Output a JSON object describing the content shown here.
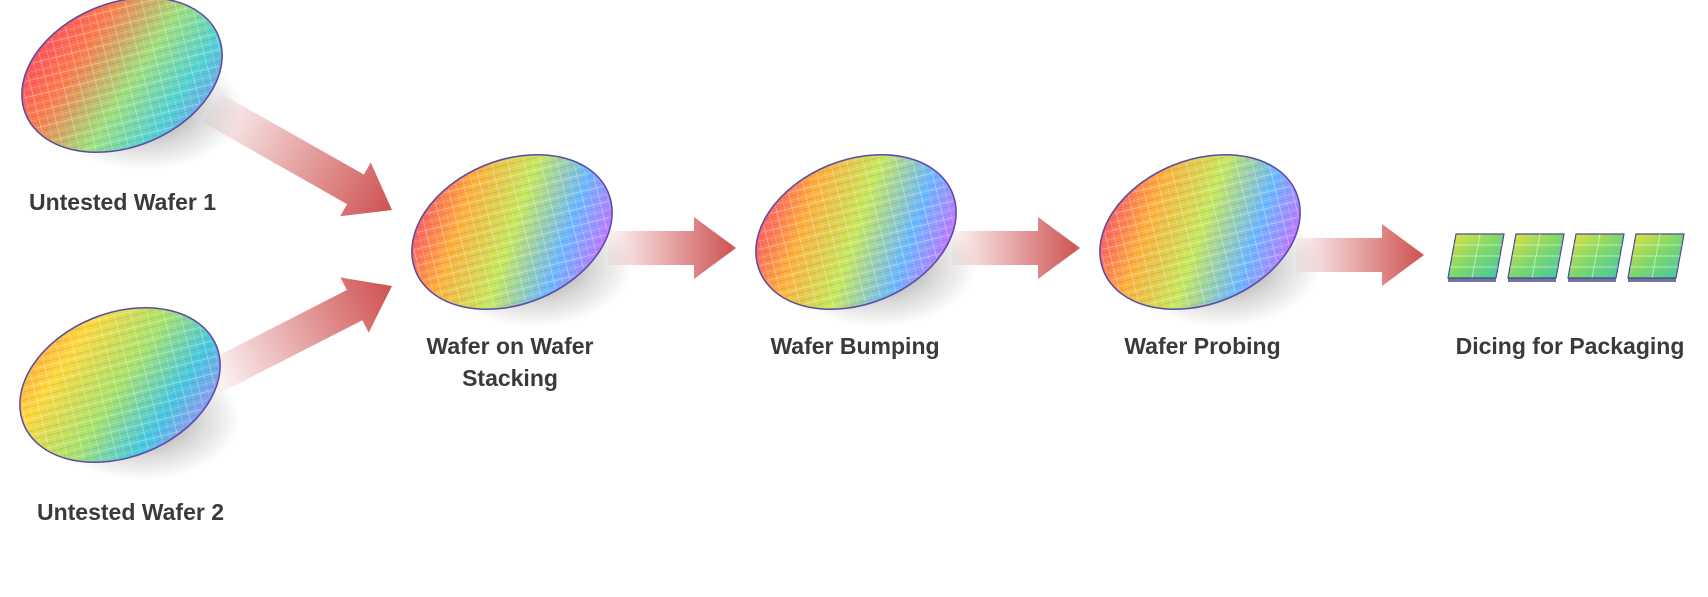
{
  "diagram": {
    "stages": [
      {
        "id": "wafer-1",
        "label": "Untested Wafer 1"
      },
      {
        "id": "wafer-2",
        "label": "Untested Wafer 2"
      },
      {
        "id": "stacking",
        "label": "Wafer on Wafer Stacking"
      },
      {
        "id": "bumping",
        "label": "Wafer Bumping"
      },
      {
        "id": "probing",
        "label": "Wafer Probing"
      },
      {
        "id": "dicing",
        "label": "Dicing for Packaging"
      }
    ],
    "flow": [
      {
        "from": "wafer-1",
        "to": "stacking"
      },
      {
        "from": "wafer-2",
        "to": "stacking"
      },
      {
        "from": "stacking",
        "to": "bumping"
      },
      {
        "from": "bumping",
        "to": "probing"
      },
      {
        "from": "probing",
        "to": "dicing"
      }
    ],
    "diced_die_count": 4,
    "colors": {
      "arrow": "#cc4848",
      "label_text": "#3a3a3a",
      "wafer_gradient": [
        "#ff3f7f",
        "#ff8a3c",
        "#ffd83a",
        "#9be36a",
        "#45d4d4",
        "#7b8cff",
        "#d56bff"
      ]
    }
  }
}
